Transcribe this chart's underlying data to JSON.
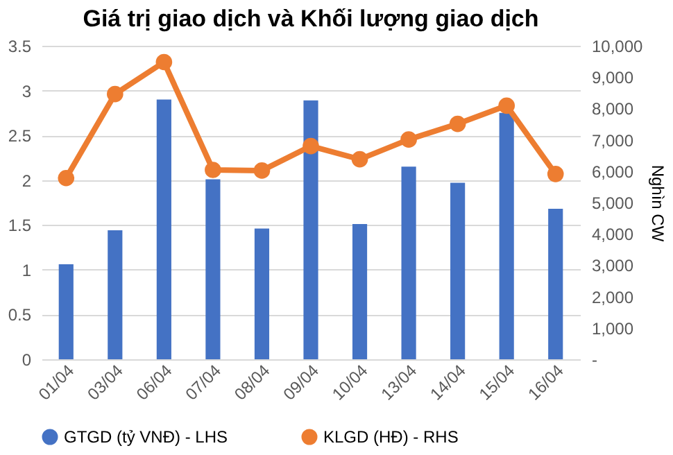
{
  "chart_data": {
    "type": "bar",
    "title": "Giá trị giao dịch và Khối lượng giao dịch",
    "y2label": "Nghìn CW",
    "categories": [
      "01/04",
      "03/04",
      "06/04",
      "07/04",
      "08/04",
      "09/04",
      "10/04",
      "13/04",
      "14/04",
      "15/04",
      "16/04"
    ],
    "series": [
      {
        "name": "GTGD (tỷ VNĐ) - LHS",
        "color": "#4472c4",
        "values": [
          1.06,
          1.44,
          2.9,
          2.01,
          1.46,
          2.89,
          1.51,
          2.15,
          1.97,
          2.75,
          1.68
        ]
      },
      {
        "name": "KLGD (HĐ) - RHS",
        "color": "#ed7d31",
        "type": "line",
        "axis": "y2",
        "marker": "circle",
        "values": [
          5780,
          8460,
          9480,
          6040,
          6020,
          6800,
          6380,
          7010,
          7510,
          8090,
          5910
        ]
      }
    ],
    "ylim": [
      0,
      3.5
    ],
    "yticks": [
      0,
      0.5,
      1,
      1.5,
      2,
      2.5,
      3,
      3.5
    ],
    "y2lim": [
      0,
      10000
    ],
    "y2ticks": [
      {
        "value": 0,
        "label": "-"
      },
      {
        "value": 1000,
        "label": "1,000"
      },
      {
        "value": 2000,
        "label": "2,000"
      },
      {
        "value": 3000,
        "label": "3,000"
      },
      {
        "value": 4000,
        "label": "4,000"
      },
      {
        "value": 5000,
        "label": "5,000"
      },
      {
        "value": 6000,
        "label": "6,000"
      },
      {
        "value": 7000,
        "label": "7,000"
      },
      {
        "value": 8000,
        "label": "8,000"
      },
      {
        "value": 9000,
        "label": "9,000"
      },
      {
        "value": 10000,
        "label": "10,000"
      }
    ],
    "grid": "y",
    "legend": "bottom"
  }
}
